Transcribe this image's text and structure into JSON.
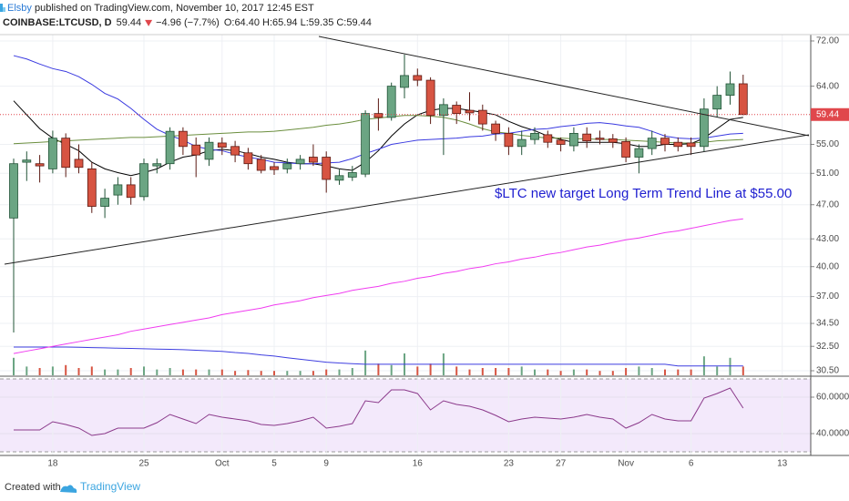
{
  "header": {
    "author": "Elsby",
    "published": " published on TradingView.com, November 10, 2017 12:45 EST",
    "symbol": "COINBASE:LTCUSD, D",
    "last": "59.44",
    "change": "−4.96 (−7.7%)",
    "ohlc": "O:64.40 H:65.94 L:59.35 C:59.44"
  },
  "footer": {
    "created": "Created with",
    "brand": "TradingView"
  },
  "chart_data": {
    "type": "candlestick",
    "categories": [
      null,
      null,
      null,
      "18",
      null,
      null,
      null,
      null,
      null,
      null,
      "25",
      null,
      null,
      null,
      null,
      null,
      "Oct",
      null,
      null,
      null,
      "5",
      null,
      null,
      null,
      "9",
      null,
      null,
      null,
      null,
      null,
      null,
      "16",
      null,
      null,
      null,
      null,
      null,
      null,
      "23",
      null,
      null,
      null,
      "27",
      null,
      null,
      null,
      null,
      "Nov",
      null,
      null,
      null,
      null,
      "6",
      null,
      null,
      null,
      null,
      null,
      null,
      "13",
      null,
      null
    ],
    "open": [
      45.4,
      52.5,
      52.3,
      51.6,
      55.9,
      52.9,
      51.6,
      46.8,
      48.2,
      49.5,
      48.0,
      52.0,
      52.3,
      56.9,
      54.9,
      52.9,
      55.2,
      54.7,
      53.8,
      52.9,
      51.9,
      51.6,
      52.3,
      53.2,
      53.2,
      50.1,
      50.5,
      50.9,
      59.6,
      59.0,
      63.8,
      65.8,
      65.0,
      59.3,
      60.9,
      60.1,
      60.1,
      58.0,
      56.6,
      54.7,
      55.7,
      56.4,
      55.6,
      54.8,
      56.5,
      55.9,
      55.8,
      55.4,
      53.2,
      54.4,
      55.9,
      55.3,
      55.2,
      54.7,
      60.3,
      62.5,
      64.4,
      null,
      null,
      null,
      null,
      null
    ],
    "high": [
      53,
      54,
      53.5,
      57,
      56.6,
      55,
      52.5,
      49,
      50.5,
      50.5,
      53,
      53,
      57.5,
      57.5,
      56,
      56,
      56,
      55.5,
      54.5,
      53.5,
      52.5,
      53,
      53.5,
      55,
      54,
      51.5,
      52,
      60.1,
      62,
      64.6,
      69.5,
      67,
      65.5,
      62,
      61.5,
      63,
      61,
      58.5,
      57.5,
      57,
      57.5,
      57,
      56,
      57.5,
      57.5,
      57,
      56.5,
      56,
      55,
      57,
      56.5,
      56,
      56,
      62,
      64,
      66.5,
      65.94,
      null,
      null,
      null,
      null,
      null
    ],
    "low": [
      33.7,
      50,
      49.8,
      51,
      50.5,
      51,
      46,
      45.4,
      47,
      47,
      47.5,
      51,
      51.5,
      53.5,
      50.5,
      52,
      53.5,
      52.5,
      51.5,
      51,
      50.8,
      51,
      51.5,
      52,
      48.5,
      49.5,
      50,
      50.5,
      57,
      58.5,
      62,
      64,
      58,
      53.5,
      58,
      58.5,
      57,
      55.5,
      53.5,
      53.5,
      55,
      54.5,
      54,
      54,
      54.5,
      55,
      54.5,
      52.5,
      51,
      53.5,
      54,
      54,
      53.5,
      54,
      59,
      61,
      59.35,
      null,
      null,
      null,
      null,
      null
    ],
    "close": [
      52.3,
      52.8,
      52.0,
      55.9,
      51.8,
      51.8,
      46.8,
      47.8,
      49.5,
      47.9,
      52.3,
      52.3,
      56.9,
      54.7,
      53.5,
      55.3,
      54.6,
      53.5,
      52.3,
      51.4,
      51.5,
      52.3,
      52.9,
      52.5,
      50.2,
      50.7,
      51.1,
      59.6,
      59.0,
      64.0,
      65.8,
      65.0,
      59.3,
      61.0,
      59.6,
      59.7,
      58.0,
      56.6,
      54.7,
      55.7,
      56.6,
      55.3,
      55.0,
      56.6,
      55.5,
      55.7,
      55.3,
      53.2,
      54.4,
      55.9,
      55.0,
      54.7,
      54.7,
      60.3,
      62.5,
      64.4,
      59.44,
      null,
      null,
      null,
      null,
      null
    ],
    "up_color": "#6ba583",
    "down_color": "#d75442",
    "up_border": "#225437",
    "down_border": "#5b1a13",
    "ylim": [
      30.14,
      73.2
    ],
    "log_scale": true,
    "grid": true,
    "current_price_color": "#e0474c",
    "yticks": [
      {
        "value": 72,
        "label": "72.00"
      },
      {
        "value": 64,
        "label": "64.00"
      },
      {
        "value": 55,
        "label": "55.00"
      },
      {
        "value": 51,
        "label": "51.00"
      },
      {
        "value": 47,
        "label": "47.00"
      },
      {
        "value": 43,
        "label": "43.00"
      },
      {
        "value": 40,
        "label": "40.00"
      },
      {
        "value": 37,
        "label": "37.00"
      },
      {
        "value": 34.5,
        "label": "34.50"
      },
      {
        "value": 32.5,
        "label": "32.50"
      },
      {
        "value": 30.5,
        "label": "30.50"
      }
    ],
    "overlays": [
      {
        "color": "#000000",
        "values": [
          61.6,
          59.4,
          57.3,
          55.9,
          55.0,
          54.1,
          52.5,
          51.6,
          51.1,
          50.7,
          51.1,
          51.6,
          52.5,
          53.2,
          53.5,
          54.1,
          54.3,
          54.1,
          53.7,
          53.2,
          52.9,
          52.5,
          52.3,
          52.3,
          52.0,
          51.6,
          51.4,
          52.5,
          54.1,
          56.2,
          58.0,
          59.4,
          60.1,
          60.4,
          60.4,
          60.1,
          59.8,
          59.4,
          58.4,
          57.6,
          57.0,
          56.2,
          55.7,
          55.3,
          55.3,
          55.3,
          55.3,
          55.1,
          54.7,
          54.7,
          55.0,
          55.0,
          55.1,
          55.9,
          57.3,
          58.7,
          59.0,
          null,
          null,
          null,
          null,
          null
        ]
      },
      {
        "color": "#6b8e3e",
        "values": [
          55.1,
          55.2,
          55.3,
          55.4,
          55.5,
          55.6,
          55.7,
          55.8,
          55.9,
          56.0,
          56.0,
          56.1,
          56.2,
          56.3,
          56.4,
          56.5,
          56.6,
          56.7,
          56.8,
          56.8,
          56.9,
          57.1,
          57.3,
          57.5,
          57.8,
          58.0,
          58.3,
          58.7,
          58.9,
          59.1,
          59.3,
          59.3,
          59.2,
          59.0,
          58.6,
          58.0,
          57.3,
          56.8,
          56.6,
          56.3,
          56.1,
          55.9,
          55.9,
          55.8,
          55.8,
          55.7,
          55.7,
          55.6,
          55.5,
          55.4,
          55.3,
          55.2,
          55.2,
          55.3,
          55.5,
          55.6,
          55.7,
          null,
          null,
          null,
          null,
          null
        ]
      },
      {
        "color": "#3a3ae0",
        "values": [
          69.3,
          68.7,
          67.8,
          67.0,
          66.5,
          65.6,
          64.3,
          62.8,
          61.9,
          60.4,
          58.7,
          57.2,
          56.3,
          55.6,
          54.7,
          54.3,
          54.1,
          53.6,
          53.2,
          52.9,
          52.5,
          52.4,
          52.3,
          52.3,
          52.4,
          52.5,
          53.0,
          53.7,
          54.3,
          55.0,
          55.3,
          55.6,
          55.7,
          55.8,
          55.9,
          56.1,
          56.2,
          56.5,
          56.6,
          56.9,
          57.2,
          57.3,
          57.6,
          57.8,
          58.1,
          58.2,
          58.0,
          57.7,
          57.5,
          56.9,
          56.2,
          55.9,
          55.8,
          55.9,
          56.2,
          56.5,
          56.6,
          null,
          null,
          null,
          null,
          null
        ]
      },
      {
        "color": "#f03cf0",
        "values": [
          31.9,
          32.1,
          32.3,
          32.5,
          32.7,
          32.9,
          33.1,
          33.3,
          33.5,
          33.8,
          34.0,
          34.2,
          34.4,
          34.6,
          34.8,
          35.0,
          35.3,
          35.5,
          35.7,
          35.9,
          36.2,
          36.4,
          36.6,
          36.9,
          37.1,
          37.3,
          37.6,
          37.8,
          38.0,
          38.3,
          38.5,
          38.8,
          39.0,
          39.3,
          39.5,
          39.8,
          40.0,
          40.3,
          40.5,
          40.8,
          41.0,
          41.3,
          41.5,
          41.8,
          42.1,
          42.3,
          42.6,
          42.9,
          43.1,
          43.4,
          43.7,
          43.9,
          44.2,
          44.5,
          44.8,
          45.1,
          45.3,
          null,
          null,
          null,
          null,
          null
        ]
      }
    ],
    "annotation": "$LTC new target Long Term Trend Line at $55.00",
    "annotation_color": "#1f1fd0",
    "volume": {
      "ylim": [
        0,
        100
      ],
      "values": [
        60,
        30,
        25,
        30,
        35,
        25,
        30,
        20,
        20,
        25,
        30,
        20,
        25,
        20,
        20,
        20,
        20,
        15,
        18,
        15,
        15,
        15,
        15,
        15,
        20,
        20,
        25,
        85,
        40,
        35,
        75,
        30,
        40,
        75,
        30,
        20,
        25,
        25,
        25,
        30,
        20,
        20,
        15,
        20,
        20,
        15,
        15,
        25,
        30,
        25,
        20,
        20,
        20,
        65,
        30,
        60,
        30,
        null,
        null,
        null,
        null,
        null
      ],
      "ma": {
        "color": "#3f3fe0",
        "values": [
          97,
          97,
          97,
          97,
          97,
          96,
          95,
          94,
          93,
          92,
          91,
          90,
          89,
          88,
          86,
          84,
          82,
          78,
          75,
          70,
          66,
          60,
          55,
          50,
          45,
          42,
          40,
          38,
          38,
          38,
          38,
          38,
          38,
          38,
          38,
          38,
          38,
          38,
          38,
          38,
          38,
          38,
          38,
          38,
          38,
          38,
          38,
          38,
          38,
          38,
          38,
          32,
          32,
          32,
          32,
          32,
          32,
          null,
          null,
          null,
          null,
          null
        ]
      }
    },
    "rsi": {
      "color": "#8b3a8b",
      "ylim": [
        28,
        71.5
      ],
      "yticks": [
        {
          "value": 60,
          "label": "60.0000"
        },
        {
          "value": 40,
          "label": "40.0000"
        }
      ],
      "bands": [
        30,
        70
      ],
      "band_fill": "#f3e9fb",
      "values": [
        42,
        42,
        42,
        46.5,
        45,
        43,
        39,
        40,
        43,
        43,
        43,
        46,
        50.5,
        48,
        45.5,
        50.5,
        49,
        48,
        47,
        45,
        44.5,
        45.5,
        47,
        49,
        43,
        44,
        45.5,
        58,
        57,
        64,
        64,
        62,
        53,
        58,
        56,
        55,
        53,
        50,
        46.5,
        48,
        49,
        48.5,
        48,
        49,
        50.5,
        49,
        48,
        43,
        46,
        50.5,
        48,
        47,
        47,
        59.5,
        62,
        65,
        54,
        null,
        null,
        null,
        null,
        null
      ]
    }
  }
}
